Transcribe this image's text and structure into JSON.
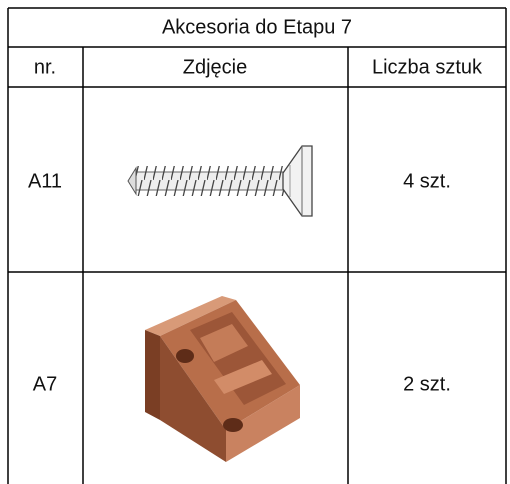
{
  "table": {
    "title": "Akcesoria do Etapu 7",
    "header": [
      "nr.",
      "Zdjęcie",
      "Liczba sztuk"
    ],
    "rows": [
      [
        "A11",
        "4 szt."
      ],
      [
        "A7",
        "2 szt."
      ]
    ]
  }
}
